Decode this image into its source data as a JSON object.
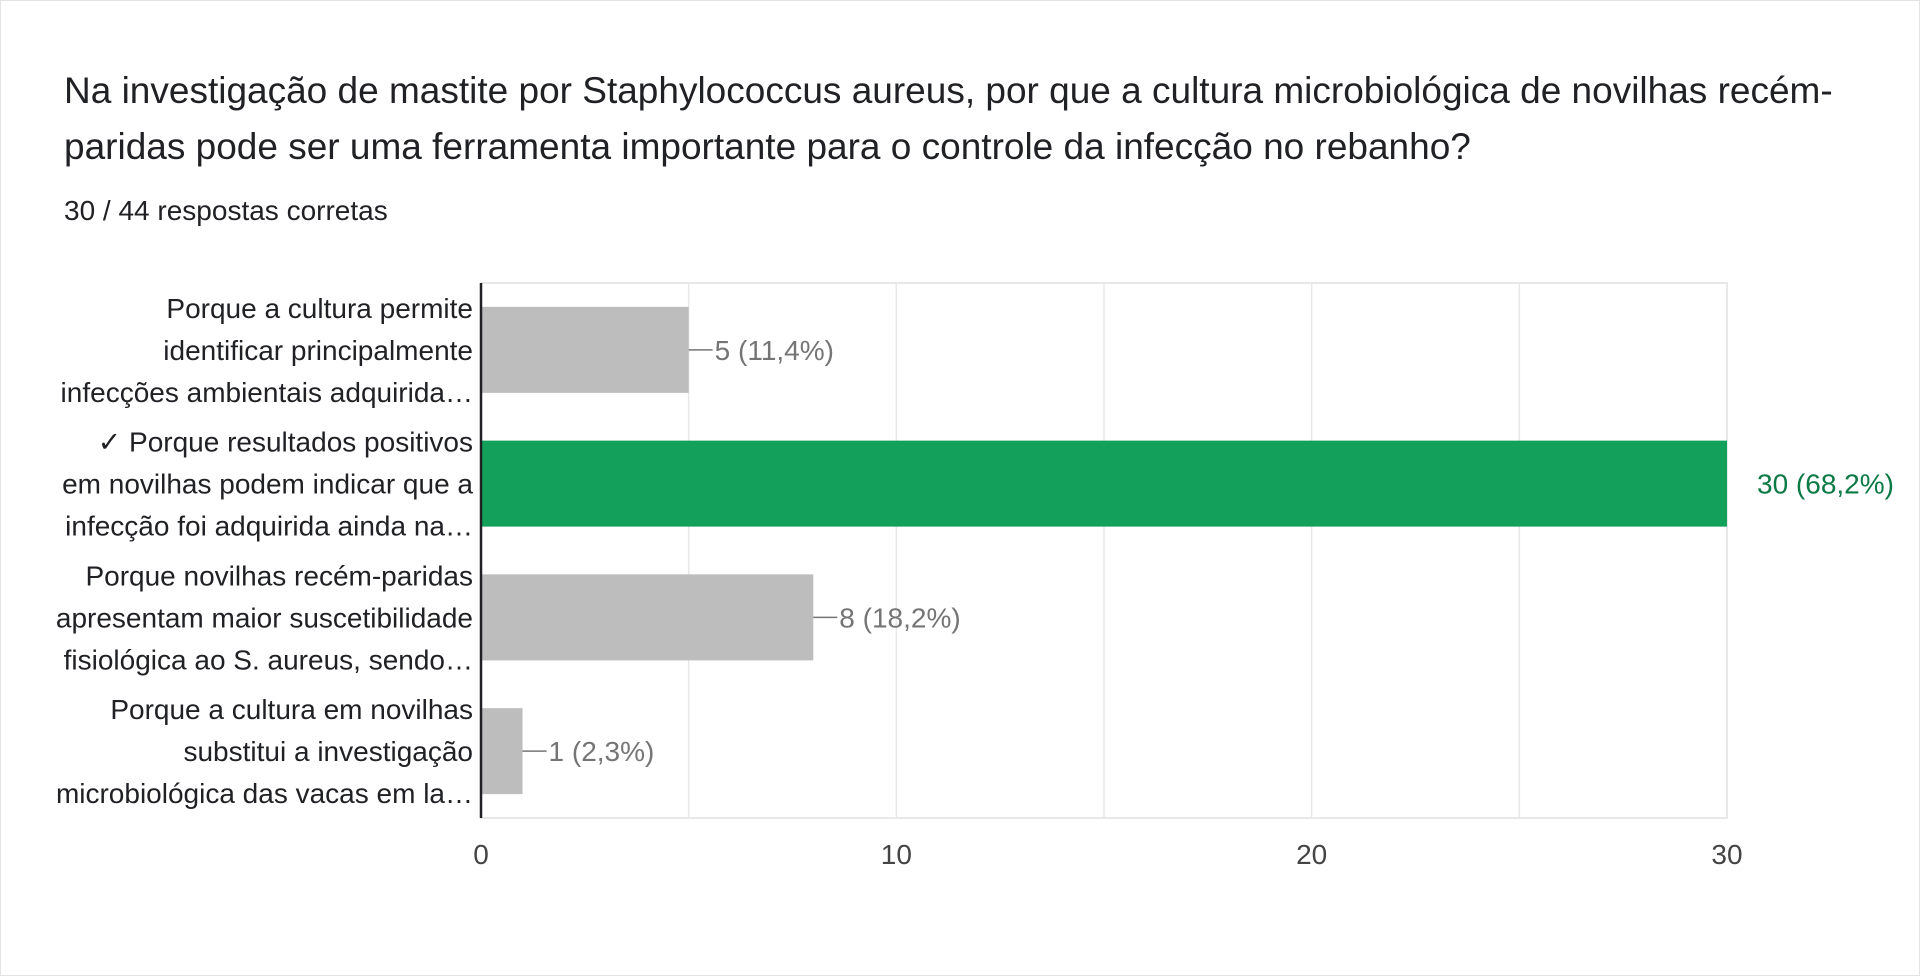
{
  "question": {
    "title": "Na investigação de mastite por Staphylococcus aureus, por que a cultura microbiológica de novilhas recém-paridas pode ser uma ferramenta importante para o controle da infecção no rebanho?",
    "score": "30 / 44 respostas corretas"
  },
  "colors": {
    "bar_default": "#bdbdbd",
    "bar_correct": "#12a05a",
    "label_default": "#757575",
    "label_correct": "#0b7a45",
    "grid": "#e8e8e8",
    "axis": "#202124"
  },
  "chart_data": {
    "type": "bar",
    "orientation": "horizontal",
    "categories": [
      [
        "Porque a cultura permite",
        "identificar principalmente",
        "infecções ambientais adquirida…"
      ],
      [
        "✓ Porque resultados positivos",
        "em novilhas podem indicar que a",
        "infecção foi adquirida ainda na…"
      ],
      [
        "Porque novilhas recém-paridas",
        "apresentam maior suscetibilidade",
        "fisiológica ao S. aureus, sendo…"
      ],
      [
        "Porque a cultura em novilhas",
        "substitui a investigação",
        "microbiológica das vacas em la…"
      ]
    ],
    "values": [
      5,
      30,
      8,
      1
    ],
    "data_labels": [
      "5 (11,4%)",
      "30 (68,2%)",
      "8 (18,2%)",
      "1 (2,3%)"
    ],
    "correct": [
      false,
      true,
      false,
      false
    ],
    "xlim": [
      0,
      30
    ],
    "xticks": [
      0,
      10,
      20,
      30
    ],
    "xtick_labels": [
      "0",
      "10",
      "20",
      "30"
    ],
    "grid": true
  }
}
